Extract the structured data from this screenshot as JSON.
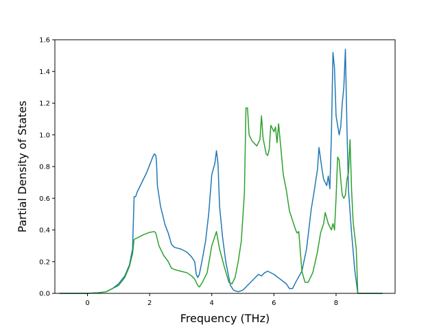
{
  "chart_data": {
    "type": "line",
    "xlabel": "Frequency (THz)",
    "ylabel": "Partial Density of States",
    "xlim": [
      -1.05,
      9.9
    ],
    "ylim": [
      0.0,
      1.6
    ],
    "xticks": [
      0,
      2,
      4,
      6,
      8
    ],
    "yticks": [
      0.0,
      0.2,
      0.4,
      0.6,
      0.8,
      1.0,
      1.2,
      1.4,
      1.6
    ],
    "xtick_labels": [
      "0",
      "2",
      "4",
      "6",
      "8"
    ],
    "ytick_labels": [
      "0.0",
      "0.2",
      "0.4",
      "0.6",
      "0.8",
      "1.0",
      "1.2",
      "1.4",
      "1.6"
    ],
    "grid": false,
    "series": [
      {
        "color": "#1f77b4",
        "points": [
          [
            -0.9,
            0.0
          ],
          [
            0.0,
            0.0
          ],
          [
            0.3,
            0.003
          ],
          [
            0.6,
            0.01
          ],
          [
            0.8,
            0.03
          ],
          [
            1.0,
            0.06
          ],
          [
            1.2,
            0.11
          ],
          [
            1.35,
            0.18
          ],
          [
            1.45,
            0.28
          ],
          [
            1.5,
            0.61
          ],
          [
            1.55,
            0.61
          ],
          [
            1.6,
            0.64
          ],
          [
            1.7,
            0.68
          ],
          [
            1.8,
            0.72
          ],
          [
            1.9,
            0.76
          ],
          [
            2.0,
            0.81
          ],
          [
            2.1,
            0.86
          ],
          [
            2.15,
            0.88
          ],
          [
            2.2,
            0.87
          ],
          [
            2.22,
            0.83
          ],
          [
            2.25,
            0.68
          ],
          [
            2.35,
            0.55
          ],
          [
            2.5,
            0.43
          ],
          [
            2.6,
            0.38
          ],
          [
            2.7,
            0.31
          ],
          [
            2.8,
            0.29
          ],
          [
            3.0,
            0.28
          ],
          [
            3.2,
            0.26
          ],
          [
            3.35,
            0.23
          ],
          [
            3.45,
            0.2
          ],
          [
            3.5,
            0.12
          ],
          [
            3.55,
            0.1
          ],
          [
            3.6,
            0.12
          ],
          [
            3.7,
            0.22
          ],
          [
            3.8,
            0.33
          ],
          [
            3.9,
            0.5
          ],
          [
            4.0,
            0.75
          ],
          [
            4.1,
            0.82
          ],
          [
            4.15,
            0.9
          ],
          [
            4.2,
            0.82
          ],
          [
            4.25,
            0.55
          ],
          [
            4.35,
            0.35
          ],
          [
            4.45,
            0.2
          ],
          [
            4.55,
            0.1
          ],
          [
            4.6,
            0.05
          ],
          [
            4.7,
            0.02
          ],
          [
            4.85,
            0.01
          ],
          [
            5.0,
            0.02
          ],
          [
            5.1,
            0.04
          ],
          [
            5.3,
            0.08
          ],
          [
            5.5,
            0.12
          ],
          [
            5.6,
            0.11
          ],
          [
            5.7,
            0.13
          ],
          [
            5.8,
            0.14
          ],
          [
            6.0,
            0.12
          ],
          [
            6.2,
            0.09
          ],
          [
            6.4,
            0.06
          ],
          [
            6.5,
            0.03
          ],
          [
            6.6,
            0.03
          ],
          [
            6.7,
            0.07
          ],
          [
            6.9,
            0.14
          ],
          [
            7.05,
            0.28
          ],
          [
            7.2,
            0.53
          ],
          [
            7.3,
            0.65
          ],
          [
            7.4,
            0.78
          ],
          [
            7.45,
            0.92
          ],
          [
            7.55,
            0.78
          ],
          [
            7.6,
            0.72
          ],
          [
            7.7,
            0.68
          ],
          [
            7.75,
            0.74
          ],
          [
            7.8,
            0.66
          ],
          [
            7.85,
            1.0
          ],
          [
            7.9,
            1.52
          ],
          [
            7.95,
            1.42
          ],
          [
            8.0,
            1.12
          ],
          [
            8.1,
            1.0
          ],
          [
            8.15,
            1.05
          ],
          [
            8.2,
            1.2
          ],
          [
            8.25,
            1.3
          ],
          [
            8.3,
            1.54
          ],
          [
            8.35,
            1.05
          ],
          [
            8.4,
            0.65
          ],
          [
            8.5,
            0.38
          ],
          [
            8.6,
            0.15
          ],
          [
            8.7,
            0.0
          ],
          [
            9.5,
            0.0
          ]
        ]
      },
      {
        "color": "#2ca02c",
        "points": [
          [
            -0.9,
            0.0
          ],
          [
            0.0,
            0.0
          ],
          [
            0.3,
            0.003
          ],
          [
            0.6,
            0.01
          ],
          [
            0.8,
            0.03
          ],
          [
            1.0,
            0.05
          ],
          [
            1.2,
            0.1
          ],
          [
            1.35,
            0.17
          ],
          [
            1.45,
            0.25
          ],
          [
            1.5,
            0.34
          ],
          [
            1.6,
            0.35
          ],
          [
            1.8,
            0.37
          ],
          [
            2.0,
            0.385
          ],
          [
            2.15,
            0.39
          ],
          [
            2.2,
            0.38
          ],
          [
            2.3,
            0.3
          ],
          [
            2.45,
            0.24
          ],
          [
            2.6,
            0.2
          ],
          [
            2.7,
            0.16
          ],
          [
            2.8,
            0.15
          ],
          [
            3.0,
            0.14
          ],
          [
            3.2,
            0.13
          ],
          [
            3.35,
            0.11
          ],
          [
            3.45,
            0.09
          ],
          [
            3.55,
            0.05
          ],
          [
            3.6,
            0.04
          ],
          [
            3.7,
            0.07
          ],
          [
            3.85,
            0.13
          ],
          [
            4.0,
            0.3
          ],
          [
            4.15,
            0.39
          ],
          [
            4.25,
            0.28
          ],
          [
            4.4,
            0.17
          ],
          [
            4.55,
            0.07
          ],
          [
            4.65,
            0.06
          ],
          [
            4.75,
            0.1
          ],
          [
            4.85,
            0.2
          ],
          [
            4.95,
            0.33
          ],
          [
            5.05,
            0.63
          ],
          [
            5.1,
            1.17
          ],
          [
            5.15,
            1.17
          ],
          [
            5.2,
            1.0
          ],
          [
            5.3,
            0.96
          ],
          [
            5.45,
            0.93
          ],
          [
            5.55,
            0.97
          ],
          [
            5.6,
            1.12
          ],
          [
            5.65,
            0.98
          ],
          [
            5.75,
            0.88
          ],
          [
            5.8,
            0.87
          ],
          [
            5.85,
            0.91
          ],
          [
            5.9,
            1.06
          ],
          [
            6.0,
            1.02
          ],
          [
            6.05,
            1.05
          ],
          [
            6.1,
            0.95
          ],
          [
            6.15,
            1.07
          ],
          [
            6.25,
            0.86
          ],
          [
            6.3,
            0.75
          ],
          [
            6.4,
            0.65
          ],
          [
            6.5,
            0.52
          ],
          [
            6.6,
            0.46
          ],
          [
            6.7,
            0.4
          ],
          [
            6.75,
            0.38
          ],
          [
            6.8,
            0.39
          ],
          [
            6.9,
            0.14
          ],
          [
            7.0,
            0.07
          ],
          [
            7.1,
            0.07
          ],
          [
            7.25,
            0.13
          ],
          [
            7.4,
            0.26
          ],
          [
            7.5,
            0.38
          ],
          [
            7.6,
            0.44
          ],
          [
            7.65,
            0.51
          ],
          [
            7.75,
            0.44
          ],
          [
            7.85,
            0.4
          ],
          [
            7.9,
            0.44
          ],
          [
            7.95,
            0.4
          ],
          [
            8.0,
            0.6
          ],
          [
            8.05,
            0.86
          ],
          [
            8.1,
            0.84
          ],
          [
            8.15,
            0.72
          ],
          [
            8.2,
            0.62
          ],
          [
            8.25,
            0.6
          ],
          [
            8.3,
            0.62
          ],
          [
            8.35,
            0.72
          ],
          [
            8.4,
            0.76
          ],
          [
            8.45,
            0.97
          ],
          [
            8.5,
            0.65
          ],
          [
            8.55,
            0.45
          ],
          [
            8.65,
            0.28
          ],
          [
            8.7,
            0.0
          ],
          [
            9.5,
            0.0
          ]
        ]
      }
    ]
  }
}
